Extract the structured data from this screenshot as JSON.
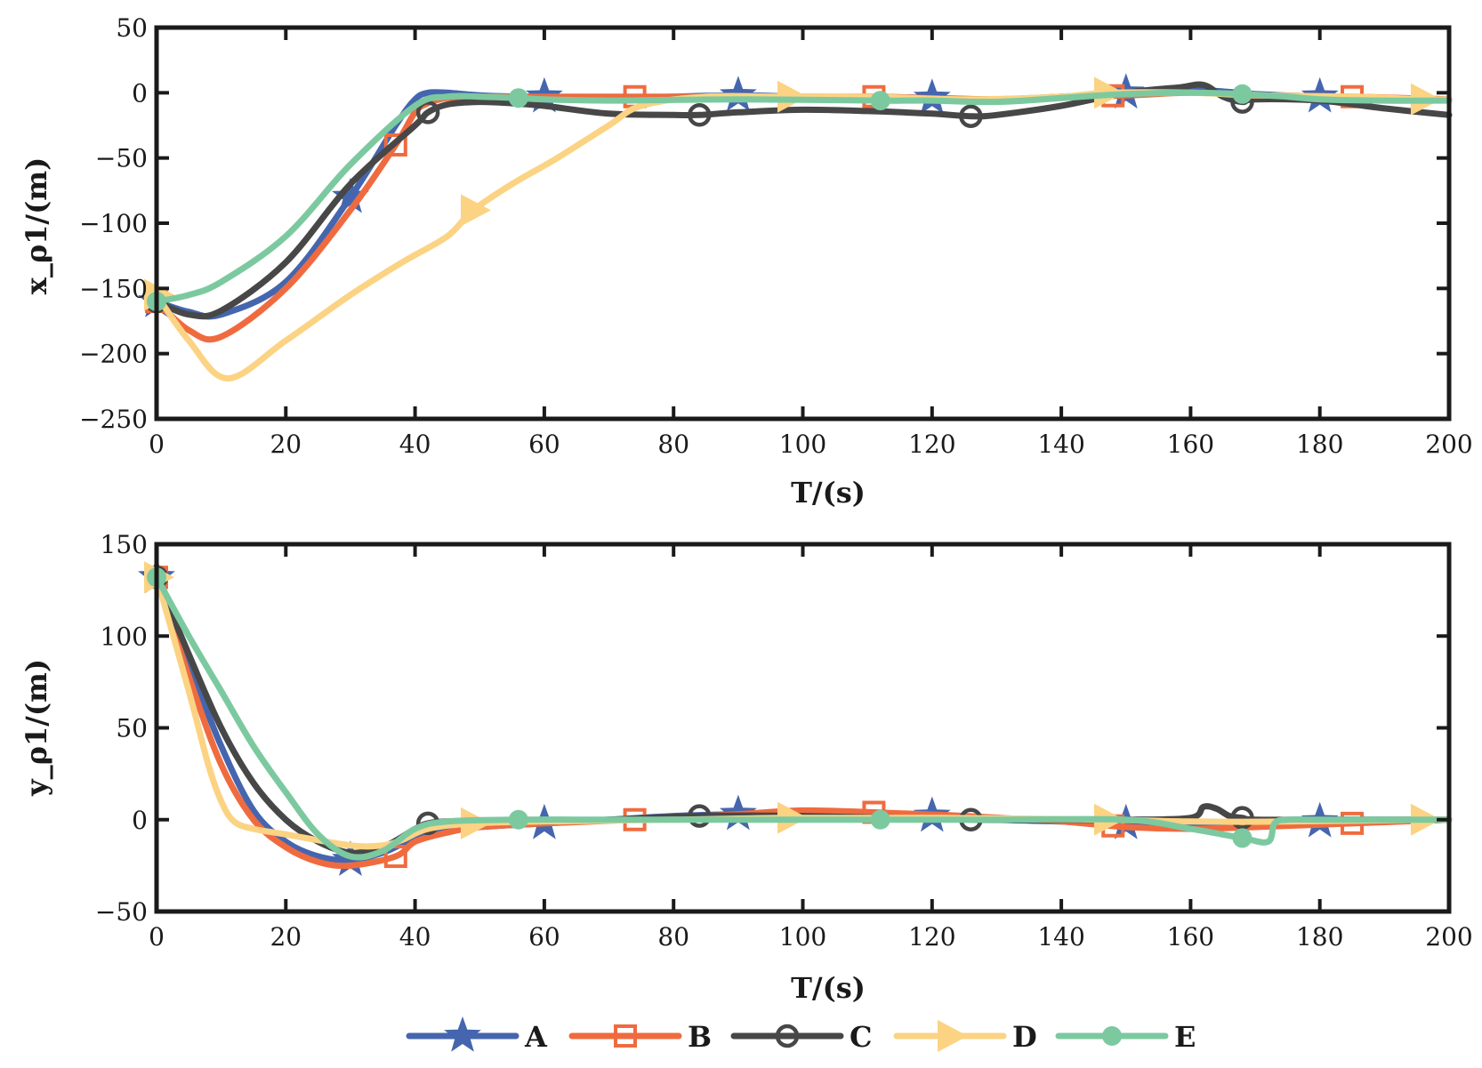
{
  "chart_data": [
    {
      "type": "line",
      "xlabel": "T/(s)",
      "ylabel": "x_ρ1/(m)",
      "xlim": [
        0,
        200
      ],
      "ylim": [
        -250,
        50
      ],
      "xticks": [
        0,
        20,
        40,
        60,
        80,
        100,
        120,
        140,
        160,
        180,
        200
      ],
      "yticks": [
        50,
        0,
        -50,
        -100,
        -150,
        -200,
        -250
      ],
      "xtick_labels": [
        "0",
        "20",
        "40",
        "60",
        "80",
        "100",
        "120",
        "140",
        "160",
        "180",
        "200"
      ],
      "ytick_labels": [
        "50",
        "0",
        "−50",
        "−100",
        "−150",
        "−200",
        "−250"
      ],
      "grid": false,
      "series": [
        {
          "name": "A",
          "marker": "star",
          "x": [
            0,
            5,
            10,
            20,
            30,
            37,
            40,
            42,
            45,
            50,
            56,
            60,
            70,
            80,
            90,
            100,
            110,
            120,
            130,
            140,
            150,
            160,
            165,
            170,
            180,
            190,
            200
          ],
          "y": [
            -160,
            -168,
            -170,
            -145,
            -80,
            -25,
            -5,
            0,
            0,
            -2,
            -3,
            -3,
            -4,
            -3,
            -2,
            -3,
            -3,
            -4,
            -5,
            -3,
            0,
            2,
            1,
            -1,
            -3,
            -4,
            -5
          ],
          "markers_x": [
            0,
            30,
            60,
            90,
            120,
            150,
            180
          ]
        },
        {
          "name": "B",
          "marker": "square",
          "x": [
            0,
            5,
            10,
            20,
            30,
            37,
            40,
            42,
            45,
            50,
            56,
            60,
            74,
            90,
            100,
            111,
            130,
            150,
            160,
            170,
            185,
            200
          ],
          "y": [
            -160,
            -182,
            -187,
            -150,
            -90,
            -40,
            -15,
            -8,
            -4,
            -3,
            -3,
            -3,
            -3,
            -3,
            -3,
            -3,
            -5,
            -2,
            0,
            -2,
            -3,
            -5
          ],
          "markers_x": [
            0,
            37,
            74,
            111,
            148,
            185
          ]
        },
        {
          "name": "C",
          "marker": "circle",
          "x": [
            0,
            5,
            10,
            20,
            30,
            40,
            42,
            45,
            50,
            55,
            60,
            70,
            80,
            84,
            90,
            100,
            110,
            120,
            126,
            130,
            140,
            150,
            158,
            162,
            165,
            168,
            170,
            180,
            190,
            200
          ],
          "y": [
            -160,
            -170,
            -167,
            -130,
            -70,
            -25,
            -15,
            -9,
            -7,
            -8,
            -10,
            -16,
            -17,
            -17,
            -15,
            -13,
            -14,
            -16,
            -18,
            -17,
            -10,
            0,
            4,
            6,
            -3,
            -7,
            -5,
            -6,
            -12,
            -17
          ],
          "markers_x": [
            0,
            42,
            84,
            126,
            168
          ]
        },
        {
          "name": "D",
          "marker": "triangle-right",
          "x": [
            0,
            5,
            11,
            20,
            30,
            38,
            45,
            49,
            55,
            62,
            70,
            75,
            85,
            97,
            110,
            125,
            140,
            147,
            160,
            170,
            185,
            196,
            200
          ],
          "y": [
            -155,
            -190,
            -219,
            -190,
            -155,
            -130,
            -110,
            -90,
            -70,
            -50,
            -25,
            -10,
            -3,
            -3,
            -3,
            -5,
            -3,
            0,
            0,
            -2,
            -3,
            -5,
            -5
          ],
          "markers_x": [
            0,
            49,
            98,
            147,
            196
          ]
        },
        {
          "name": "E",
          "marker": "dot",
          "x": [
            0,
            5,
            10,
            20,
            30,
            40,
            45,
            50,
            56,
            60,
            70,
            90,
            112,
            120,
            130,
            140,
            150,
            160,
            168,
            175,
            180,
            190,
            200
          ],
          "y": [
            -160,
            -155,
            -145,
            -110,
            -55,
            -10,
            -3,
            -3,
            -4,
            -5,
            -6,
            -5,
            -6,
            -6,
            -7,
            -4,
            -1,
            0,
            -1,
            -3,
            -5,
            -6,
            -6
          ],
          "markers_x": [
            0,
            56,
            112,
            168
          ]
        }
      ]
    },
    {
      "type": "line",
      "xlabel": "T/(s)",
      "ylabel": "y_ρ1/(m)",
      "xlim": [
        0,
        200
      ],
      "ylim": [
        -50,
        150
      ],
      "xticks": [
        0,
        20,
        40,
        60,
        80,
        100,
        120,
        140,
        160,
        180,
        200
      ],
      "yticks": [
        150,
        100,
        50,
        0,
        -50
      ],
      "xtick_labels": [
        "0",
        "20",
        "40",
        "60",
        "80",
        "100",
        "120",
        "140",
        "160",
        "180",
        "200"
      ],
      "ytick_labels": [
        "150",
        "100",
        "50",
        "0",
        "−50"
      ],
      "grid": false,
      "series": [
        {
          "name": "A",
          "marker": "star",
          "x": [
            0,
            5,
            10,
            15,
            20,
            25,
            30,
            35,
            40,
            45,
            50,
            60,
            70,
            80,
            90,
            100,
            110,
            120,
            130,
            140,
            150,
            160,
            170,
            180,
            190,
            200
          ],
          "y": [
            132,
            85,
            40,
            5,
            -12,
            -20,
            -22,
            -18,
            -10,
            -6,
            -4,
            -2,
            0,
            2,
            3,
            4,
            3,
            2,
            0,
            -1,
            -2,
            -3,
            -2,
            -1,
            -1,
            0
          ],
          "markers_x": [
            0,
            30,
            60,
            90,
            120,
            150,
            180
          ]
        },
        {
          "name": "B",
          "marker": "square",
          "x": [
            0,
            5,
            10,
            15,
            20,
            25,
            30,
            37,
            40,
            45,
            50,
            60,
            74,
            90,
            100,
            111,
            125,
            140,
            150,
            160,
            170,
            185,
            200
          ],
          "y": [
            132,
            78,
            30,
            0,
            -15,
            -23,
            -25,
            -20,
            -12,
            -7,
            -4,
            -2,
            0,
            3,
            5,
            4,
            2,
            -1,
            -4,
            -5,
            -4,
            -2,
            0
          ],
          "markers_x": [
            0,
            37,
            74,
            111,
            148,
            185
          ]
        },
        {
          "name": "C",
          "marker": "circle",
          "x": [
            0,
            5,
            10,
            15,
            20,
            25,
            30,
            35,
            40,
            42,
            45,
            50,
            60,
            70,
            84,
            100,
            126,
            140,
            150,
            160,
            162,
            164,
            166,
            168,
            170,
            180,
            200
          ],
          "y": [
            132,
            90,
            50,
            20,
            0,
            -12,
            -18,
            -15,
            -5,
            -2,
            -1,
            -1,
            -1,
            0,
            2,
            2,
            0,
            0,
            0,
            1,
            7,
            6,
            2,
            1,
            0,
            0,
            0
          ],
          "markers_x": [
            0,
            42,
            84,
            126,
            168
          ]
        },
        {
          "name": "D",
          "marker": "triangle-right",
          "x": [
            0,
            5,
            8,
            10,
            12,
            15,
            20,
            30,
            35,
            38,
            42,
            49,
            60,
            80,
            98,
            120,
            147,
            160,
            175,
            196,
            200
          ],
          "y": [
            132,
            70,
            30,
            10,
            -1,
            -5,
            -8,
            -14,
            -14,
            -11,
            -5,
            -2,
            -1,
            0,
            1,
            1,
            0,
            -1,
            -1,
            0,
            0
          ],
          "markers_x": [
            0,
            49,
            98,
            147,
            196
          ]
        },
        {
          "name": "E",
          "marker": "dot",
          "x": [
            0,
            5,
            10,
            15,
            20,
            25,
            30,
            35,
            40,
            45,
            56,
            70,
            90,
            112,
            130,
            150,
            160,
            168,
            172,
            173,
            175,
            180,
            200
          ],
          "y": [
            132,
            100,
            70,
            40,
            15,
            -8,
            -20,
            -17,
            -5,
            -1,
            0,
            0,
            0,
            0,
            0,
            0,
            -5,
            -10,
            -12,
            -2,
            0,
            0,
            0
          ],
          "markers_x": [
            0,
            56,
            112,
            168
          ]
        }
      ]
    }
  ],
  "legend": {
    "placement": "bottom-center",
    "entries": [
      {
        "label": "A",
        "color": "#4566ae",
        "marker": "star"
      },
      {
        "label": "B",
        "color": "#ef6b3f",
        "marker": "square"
      },
      {
        "label": "C",
        "color": "#474747",
        "marker": "circle"
      },
      {
        "label": "D",
        "color": "#fbd383",
        "marker": "triangle-right"
      },
      {
        "label": "E",
        "color": "#7cc9a0",
        "marker": "dot"
      }
    ]
  }
}
